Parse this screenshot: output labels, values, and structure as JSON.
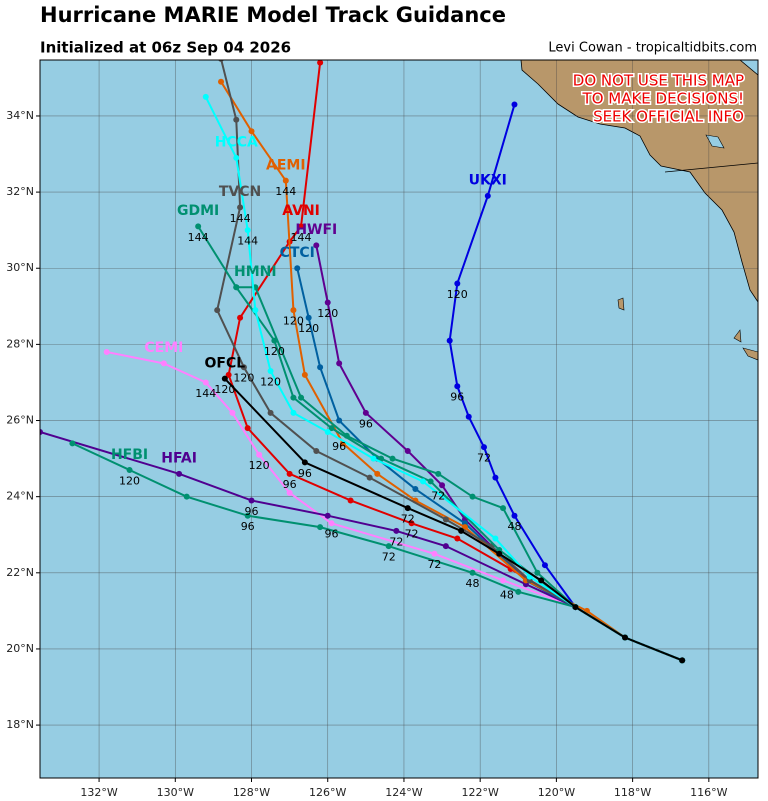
{
  "header": {
    "title": "Hurricane MARIE Model Track Guidance",
    "subtitle": "Initialized at 06z Sep 04 2026",
    "credit": "Levi Cowan - tropicaltidbits.com"
  },
  "map": {
    "lon_range": [
      -133.55,
      -114.71
    ],
    "lat_range": [
      16.61,
      35.47
    ],
    "lon_ticks": [
      {
        "value": -132,
        "label": "132°W"
      },
      {
        "value": -130,
        "label": "130°W"
      },
      {
        "value": -128,
        "label": "128°W"
      },
      {
        "value": -126,
        "label": "126°W"
      },
      {
        "value": -124,
        "label": "124°W"
      },
      {
        "value": -122,
        "label": "122°W"
      },
      {
        "value": -120,
        "label": "120°W"
      },
      {
        "value": -118,
        "label": "118°W"
      },
      {
        "value": -116,
        "label": "116°W"
      }
    ],
    "lat_ticks": [
      {
        "value": 18,
        "label": "18°N"
      },
      {
        "value": 20,
        "label": "20°N"
      },
      {
        "value": 22,
        "label": "22°N"
      },
      {
        "value": 24,
        "label": "24°N"
      },
      {
        "value": 26,
        "label": "26°N"
      },
      {
        "value": 28,
        "label": "28°N"
      },
      {
        "value": 30,
        "label": "30°N"
      },
      {
        "value": 32,
        "label": "32°N"
      },
      {
        "value": 34,
        "label": "34°N"
      }
    ],
    "warning": [
      "DO NOT USE THIS MAP",
      "TO MAKE DECISIONS!",
      "SEEK OFFICIAL INFO"
    ],
    "tracks": [
      {
        "name": "UKXI",
        "color": "#0000e0",
        "name_lon": -121.8,
        "name_lat": 32.3,
        "lon": [
          -116.7,
          -118.2,
          -119.5,
          -120.3,
          -121.1,
          -121.6,
          -121.9,
          -122.3,
          -122.6,
          -122.8,
          -122.6,
          -121.8,
          -121.1
        ],
        "lat": [
          19.7,
          20.3,
          21.1,
          22.2,
          23.5,
          24.5,
          25.3,
          26.1,
          26.9,
          28.1,
          29.6,
          31.9,
          34.3
        ],
        "labels": [
          {
            "text": "48",
            "lon": -121.1,
            "lat": 23.2
          },
          {
            "text": "72",
            "lon": -121.9,
            "lat": 25.0
          },
          {
            "text": "96",
            "lon": -122.6,
            "lat": 26.6
          },
          {
            "text": "120",
            "lon": -122.6,
            "lat": 29.3
          }
        ]
      },
      {
        "name": "AVNI",
        "color": "#e00000",
        "name_lon": -126.7,
        "name_lat": 31.5,
        "lon": [
          -116.7,
          -118.2,
          -119.5,
          -121.2,
          -122.6,
          -123.8,
          -125.4,
          -127.0,
          -128.1,
          -128.6,
          -128.3,
          -127.0,
          -126.7,
          -126.2
        ],
        "lat": [
          19.7,
          20.3,
          21.1,
          22.1,
          22.9,
          23.3,
          23.9,
          24.6,
          25.8,
          27.2,
          28.7,
          30.7,
          31.1,
          35.4
        ],
        "labels": [
          {
            "text": "72",
            "lon": -123.8,
            "lat": 23.0
          },
          {
            "text": "96",
            "lon": -127.0,
            "lat": 24.3
          },
          {
            "text": "120",
            "lon": -127.8,
            "lat": 24.8
          },
          {
            "text": "144",
            "lon": -126.7,
            "lat": 30.8
          }
        ]
      },
      {
        "name": "CEMI",
        "color": "#ff80ff",
        "name_lon": -130.3,
        "name_lat": 27.9,
        "lon": [
          -116.7,
          -118.2,
          -119.5,
          -121.4,
          -123.2,
          -125.9,
          -127.0,
          -127.8,
          -128.5,
          -129.2,
          -130.3,
          -131.8
        ],
        "lat": [
          19.7,
          20.3,
          21.1,
          21.8,
          22.5,
          23.3,
          24.1,
          25.1,
          26.2,
          27.0,
          27.5,
          27.8
        ],
        "labels": [
          {
            "text": "72",
            "lon": -124.4,
            "lat": 22.4
          },
          {
            "text": "96",
            "lon": -125.9,
            "lat": 23.0
          },
          {
            "text": "144",
            "lon": -129.2,
            "lat": 26.7
          }
        ]
      },
      {
        "name": "HFAI",
        "color": "#500090",
        "name_lon": -129.9,
        "name_lat": 25.0,
        "lon": [
          -116.7,
          -118.2,
          -119.5,
          -120.8,
          -122.9,
          -124.2,
          -126.0,
          -128.0,
          -129.9,
          -133.55
        ],
        "lat": [
          19.7,
          20.3,
          21.1,
          21.7,
          22.7,
          23.1,
          23.5,
          23.9,
          24.6,
          25.7
        ],
        "labels": [
          {
            "text": "72",
            "lon": -124.2,
            "lat": 22.8
          },
          {
            "text": "96",
            "lon": -128.0,
            "lat": 23.6
          }
        ]
      },
      {
        "name": "HFBI",
        "color": "#009070",
        "name_lon": -131.2,
        "name_lat": 25.1,
        "lon": [
          -116.7,
          -118.2,
          -119.5,
          -121.0,
          -122.2,
          -124.4,
          -126.2,
          -128.1,
          -129.7,
          -131.2,
          -132.7
        ],
        "lat": [
          19.7,
          20.3,
          21.1,
          21.5,
          22.0,
          22.7,
          23.2,
          23.5,
          24.0,
          24.7,
          25.4
        ],
        "labels": [
          {
            "text": "48",
            "lon": -121.3,
            "lat": 21.4
          },
          {
            "text": "48",
            "lon": -122.2,
            "lat": 21.7
          },
          {
            "text": "72",
            "lon": -123.2,
            "lat": 22.2
          },
          {
            "text": "96",
            "lon": -128.1,
            "lat": 23.2
          },
          {
            "text": "120",
            "lon": -131.2,
            "lat": 24.4
          }
        ]
      },
      {
        "name": "HWFI",
        "color": "#600090",
        "name_lon": -126.3,
        "name_lat": 31.0,
        "lon": [
          -116.7,
          -118.2,
          -119.5,
          -120.8,
          -122.4,
          -123.0,
          -123.9,
          -125.0,
          -125.7,
          -126.0,
          -126.3
        ],
        "lat": [
          19.7,
          20.3,
          21.1,
          21.8,
          23.4,
          24.3,
          25.2,
          26.2,
          27.5,
          29.1,
          30.6
        ],
        "labels": [
          {
            "text": "72",
            "lon": -123.1,
            "lat": 24.0
          },
          {
            "text": "96",
            "lon": -125.0,
            "lat": 25.9
          },
          {
            "text": "120",
            "lon": -126.0,
            "lat": 28.8
          }
        ]
      },
      {
        "name": "CTCI",
        "color": "#0060a0",
        "name_lon": -126.8,
        "name_lat": 30.4,
        "lon": [
          -116.7,
          -118.2,
          -119.5,
          -120.8,
          -122.4,
          -123.7,
          -124.7,
          -125.7,
          -126.2,
          -126.5,
          -126.8
        ],
        "lat": [
          19.7,
          20.3,
          21.1,
          21.8,
          23.3,
          24.2,
          25.0,
          26.0,
          27.4,
          28.7,
          30.0
        ],
        "labels": [
          {
            "text": "96",
            "lon": -125.7,
            "lat": 25.3
          },
          {
            "text": "120",
            "lon": -126.5,
            "lat": 28.4
          }
        ]
      },
      {
        "name": "AEMI",
        "color": "#e06000",
        "name_lon": -127.1,
        "name_lat": 32.7,
        "lon": [
          -116.7,
          -118.2,
          -119.2,
          -120.8,
          -122.4,
          -123.7,
          -124.7,
          -125.6,
          -126.6,
          -126.9,
          -127.1,
          -128.0,
          -128.8
        ],
        "lat": [
          19.7,
          20.3,
          21.0,
          21.8,
          23.2,
          23.9,
          24.6,
          25.4,
          27.2,
          28.9,
          32.3,
          33.6,
          34.9
        ],
        "labels": [
          {
            "text": "120",
            "lon": -126.9,
            "lat": 28.6
          },
          {
            "text": "144",
            "lon": -127.1,
            "lat": 32.0
          }
        ]
      },
      {
        "name": "TVCN",
        "color": "#505050",
        "name_lon": -128.3,
        "name_lat": 32.0,
        "lon": [
          -116.7,
          -118.2,
          -119.5,
          -120.7,
          -121.7,
          -122.9,
          -124.9,
          -126.3,
          -127.5,
          -128.2,
          -128.9,
          -128.3,
          -128.4,
          -128.8
        ],
        "lat": [
          19.7,
          20.3,
          21.1,
          21.8,
          22.7,
          23.4,
          24.5,
          25.2,
          26.2,
          27.4,
          28.9,
          31.6,
          33.9,
          35.5
        ],
        "labels": [
          {
            "text": "120",
            "lon": -128.2,
            "lat": 27.1
          },
          {
            "text": "144",
            "lon": -128.3,
            "lat": 31.3
          }
        ]
      },
      {
        "name": "GDMI",
        "color": "#009070",
        "name_lon": -129.4,
        "name_lat": 31.5,
        "lon": [
          -116.7,
          -118.2,
          -119.5,
          -120.5,
          -121.4,
          -122.2,
          -123.1,
          -124.3,
          -125.5,
          -126.7,
          -127.9,
          -128.4,
          -129.4
        ],
        "lat": [
          19.7,
          20.3,
          21.1,
          22.0,
          23.7,
          24.0,
          24.6,
          25.0,
          25.6,
          26.6,
          29.5,
          29.5,
          31.1
        ],
        "labels": [
          {
            "text": "144",
            "lon": -129.4,
            "lat": 30.8
          }
        ]
      },
      {
        "name": "HMNI",
        "color": "#009070",
        "name_lon": -127.9,
        "name_lat": 29.9,
        "lon": [
          -116.7,
          -118.2,
          -119.5,
          -121.5,
          -123.3,
          -124.6,
          -125.9,
          -126.9,
          -127.4,
          -128.4
        ],
        "lat": [
          19.7,
          20.3,
          21.1,
          22.6,
          24.4,
          25.0,
          25.8,
          26.6,
          28.1,
          29.5
        ],
        "labels": [
          {
            "text": "120",
            "lon": -127.4,
            "lat": 27.8
          }
        ]
      },
      {
        "name": "HCCA",
        "color": "#00ffff",
        "name_lon": -128.4,
        "name_lat": 33.3,
        "lon": [
          -116.7,
          -118.2,
          -119.5,
          -120.7,
          -121.6,
          -123.5,
          -124.8,
          -126.0,
          -126.9,
          -127.5,
          -127.9,
          -128.1,
          -128.4,
          -129.2
        ],
        "lat": [
          19.7,
          20.3,
          21.1,
          21.9,
          22.9,
          24.4,
          25.0,
          25.7,
          26.2,
          27.3,
          28.9,
          31.0,
          32.9,
          34.5
        ],
        "labels": [
          {
            "text": "120",
            "lon": -127.5,
            "lat": 27.0
          },
          {
            "text": "144",
            "lon": -128.1,
            "lat": 30.7
          }
        ]
      },
      {
        "name": "OFCL",
        "color": "#000000",
        "name_lon": -128.7,
        "name_lat": 27.5,
        "lon": [
          -116.7,
          -118.2,
          -119.5,
          -120.4,
          -121.5,
          -122.5,
          -123.9,
          -126.6,
          -128.7
        ],
        "lat": [
          19.7,
          20.3,
          21.1,
          21.8,
          22.5,
          23.1,
          23.7,
          24.9,
          27.1
        ],
        "labels": [
          {
            "text": "72",
            "lon": -123.9,
            "lat": 23.4
          },
          {
            "text": "96",
            "lon": -126.6,
            "lat": 24.6
          },
          {
            "text": "120",
            "lon": -128.7,
            "lat": 26.8
          }
        ]
      }
    ]
  }
}
